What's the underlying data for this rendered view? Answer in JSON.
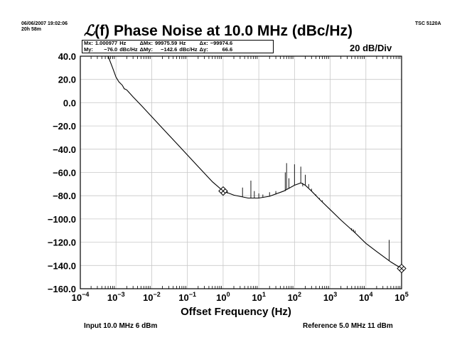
{
  "header": {
    "datetime": "06/06/2007 19:02:06",
    "elapsed": "20h 58m",
    "instrument": "TSC 5120A"
  },
  "readout": {
    "rows": [
      [
        "Mx:",
        "1.000977",
        "Hz",
        "ΔMx:",
        "99975.59",
        "Hz",
        "Δx:",
        "−99974.6"
      ],
      [
        "My:",
        "−76.0",
        "dBc/Hz",
        "ΔMy:",
        "−142.6",
        "dBc/Hz",
        "Δy:",
        "66.6"
      ]
    ]
  },
  "footer": {
    "input": "Input 10.0 MHz 6 dBm",
    "reference": "Reference 5.0 MHz 11 dBm"
  },
  "chart_data": {
    "type": "line",
    "title_prefix": "ℒ",
    "title": "(f) Phase Noise at 10.0 MHz (dBc/Hz)",
    "scale_label": "20 dB/Div",
    "xlabel": "Offset Frequency (Hz)",
    "ylabel": "",
    "x_scale": "log",
    "xlim": [
      0.0001,
      100000
    ],
    "ylim": [
      -160,
      40
    ],
    "grid": true,
    "x_tick_labels": [
      {
        "base": "10",
        "exp": "−4"
      },
      {
        "base": "10",
        "exp": "−3"
      },
      {
        "base": "10",
        "exp": "−2"
      },
      {
        "base": "10",
        "exp": "−1"
      },
      {
        "base": "10",
        "exp": "0"
      },
      {
        "base": "10",
        "exp": "1"
      },
      {
        "base": "10",
        "exp": "2"
      },
      {
        "base": "10",
        "exp": "3"
      },
      {
        "base": "10",
        "exp": "4"
      },
      {
        "base": "10",
        "exp": "5"
      }
    ],
    "y_tick_labels": [
      "40.0",
      "20.0",
      "0.0",
      "−20.0",
      "−40.0",
      "−60.0",
      "−80.0",
      "−100.0",
      "−120.0",
      "−140.0",
      "−160.0"
    ],
    "series": [
      {
        "points": [
          [
            0.0006,
            40
          ],
          [
            0.0008,
            30
          ],
          [
            0.001,
            22
          ],
          [
            0.0012,
            18
          ],
          [
            0.0015,
            15
          ],
          [
            0.0017,
            12
          ],
          [
            0.002,
            11
          ],
          [
            0.003,
            5
          ],
          [
            0.005,
            -2
          ],
          [
            0.01,
            -12
          ],
          [
            0.02,
            -22
          ],
          [
            0.05,
            -35
          ],
          [
            0.1,
            -45
          ],
          [
            0.2,
            -55
          ],
          [
            0.5,
            -68
          ],
          [
            1,
            -76
          ],
          [
            2,
            -79.5
          ],
          [
            5,
            -82
          ],
          [
            10,
            -82
          ],
          [
            20,
            -80.5
          ],
          [
            50,
            -76
          ],
          [
            100,
            -71
          ],
          [
            150,
            -69
          ],
          [
            200,
            -71
          ],
          [
            300,
            -76
          ],
          [
            500,
            -83
          ],
          [
            1000,
            -92
          ],
          [
            2000,
            -101
          ],
          [
            5000,
            -112
          ],
          [
            10000,
            -121
          ],
          [
            20000,
            -128
          ],
          [
            50000,
            -137
          ],
          [
            100000,
            -142.6
          ]
        ],
        "spurs": [
          [
            1.3,
            -76,
            -78
          ],
          [
            3.5,
            -73,
            -81
          ],
          [
            6,
            -67,
            -82
          ],
          [
            7.5,
            -76,
            -82
          ],
          [
            10,
            -78,
            -82
          ],
          [
            13,
            -79,
            -81.5
          ],
          [
            20,
            -77,
            -80.5
          ],
          [
            30,
            -76,
            -79
          ],
          [
            55,
            -60,
            -76
          ],
          [
            60,
            -52,
            -75
          ],
          [
            70,
            -65,
            -74
          ],
          [
            100,
            -53,
            -71
          ],
          [
            120,
            -70,
            -70
          ],
          [
            150,
            -55,
            -69
          ],
          [
            170,
            -72,
            -69
          ],
          [
            200,
            -62,
            -71
          ],
          [
            250,
            -70,
            -73
          ],
          [
            300,
            -74,
            -76
          ],
          [
            400,
            -79,
            -80
          ],
          [
            500,
            -82,
            -83
          ],
          [
            600,
            -84,
            -85
          ],
          [
            4000,
            -108,
            -110
          ],
          [
            4500,
            -109,
            -111
          ],
          [
            5000,
            -110,
            -112
          ],
          [
            45000,
            -118,
            -136
          ]
        ]
      }
    ],
    "markers": [
      {
        "x": 1.000977,
        "y": -76.0
      },
      {
        "x": 100000,
        "y": -142.6
      }
    ]
  }
}
